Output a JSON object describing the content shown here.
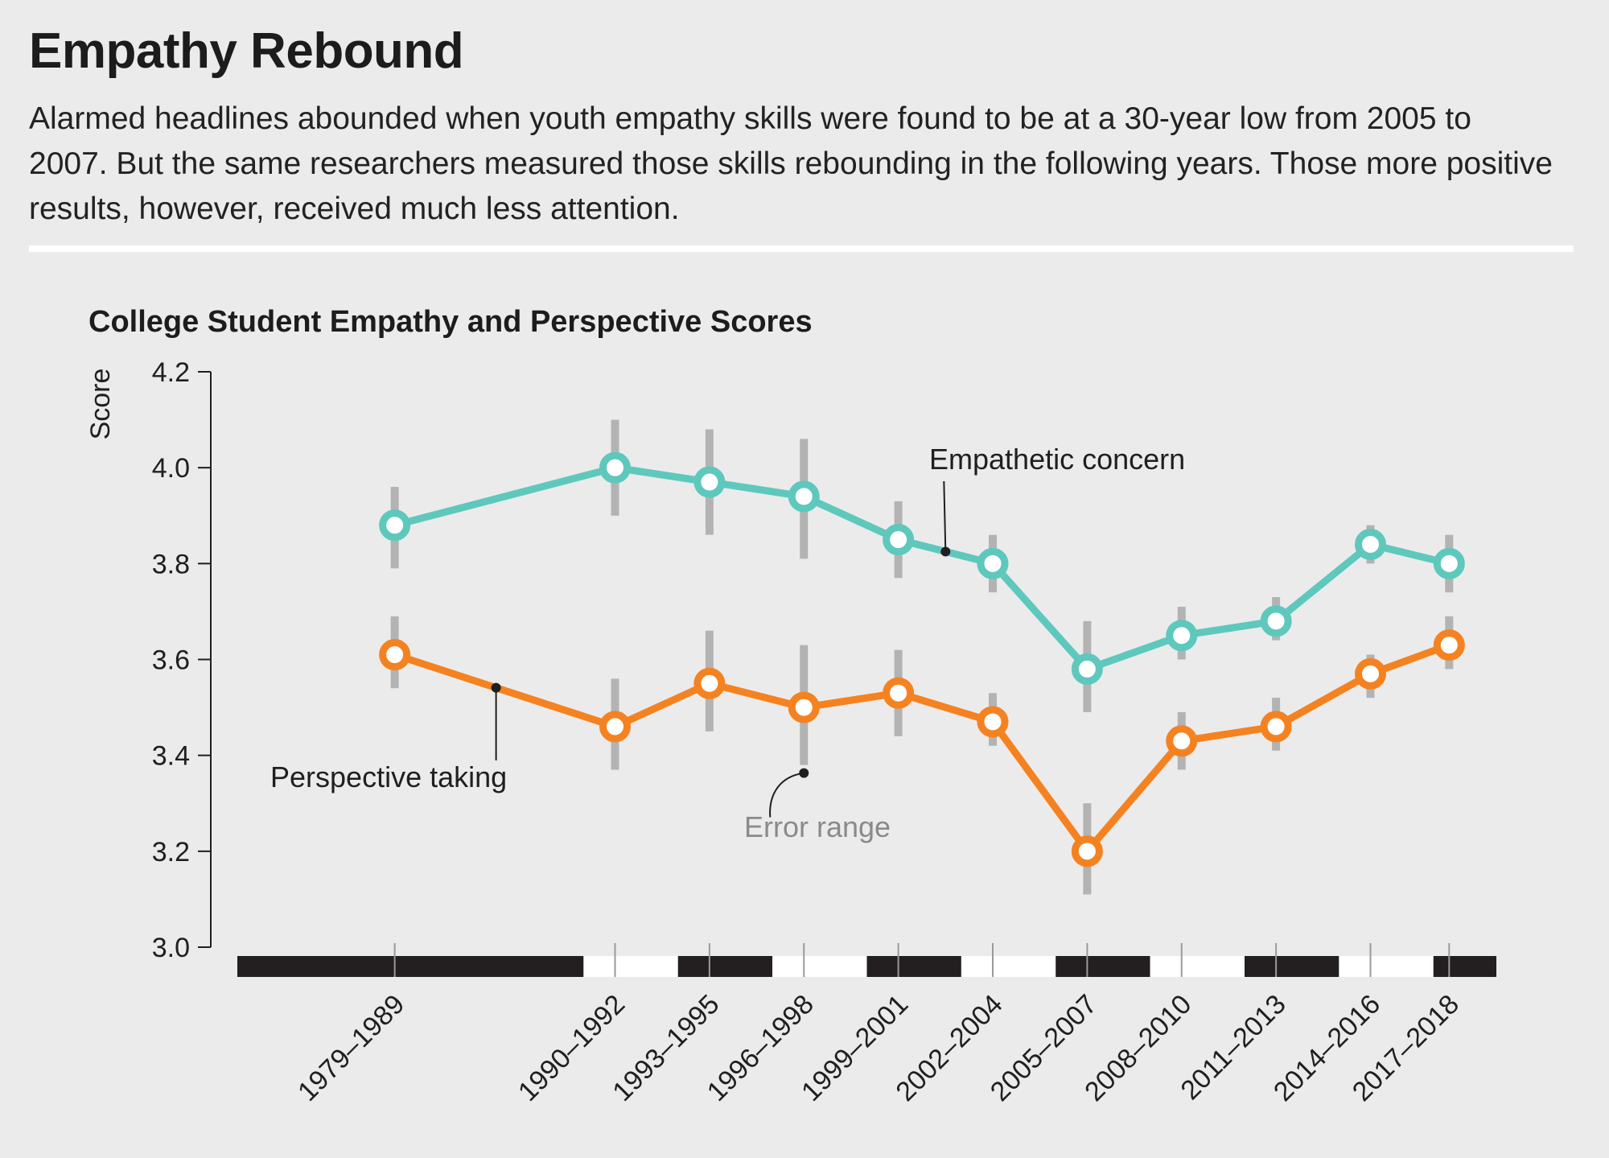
{
  "header": {
    "title": "Empathy Rebound",
    "description": "Alarmed headlines abounded when youth empathy skills were found to be at a 30-year low from 2005 to 2007. But the same researchers measured those skills rebounding in the following years. Those more positive results, however, received much less attention."
  },
  "chart_data": {
    "type": "line",
    "title": "College Student Empathy and Perspective Scores",
    "ylabel": "Score",
    "xlabel": "",
    "ylim": [
      3.0,
      4.2
    ],
    "yticks": [
      "3.0",
      "3.2",
      "3.4",
      "3.6",
      "3.8",
      "4.0",
      "4.2"
    ],
    "grid": false,
    "categories": [
      "1979–1989",
      "1990–1992",
      "1993–1995",
      "1996–1998",
      "1999–2001",
      "2002–2004",
      "2005–2007",
      "2008–2010",
      "2011–2013",
      "2014–2016",
      "2017–2018"
    ],
    "x_midyears": [
      1984,
      1991,
      1994,
      1997,
      2000,
      2003,
      2006,
      2009,
      2012,
      2015,
      2017.5
    ],
    "series": [
      {
        "name": "Empathetic concern",
        "color": "#5ec8bd",
        "values": [
          3.88,
          4.0,
          3.97,
          3.94,
          3.85,
          3.8,
          3.58,
          3.65,
          3.68,
          3.84,
          3.8
        ],
        "error_low": [
          3.79,
          3.9,
          3.86,
          3.81,
          3.77,
          3.74,
          3.49,
          3.6,
          3.64,
          3.8,
          3.74
        ],
        "error_high": [
          3.96,
          4.1,
          4.08,
          4.06,
          3.93,
          3.86,
          3.68,
          3.71,
          3.73,
          3.88,
          3.86
        ]
      },
      {
        "name": "Perspective taking",
        "color": "#f58220",
        "values": [
          3.61,
          3.46,
          3.55,
          3.5,
          3.53,
          3.47,
          3.2,
          3.43,
          3.46,
          3.57,
          3.63
        ],
        "error_low": [
          3.54,
          3.37,
          3.45,
          3.38,
          3.44,
          3.42,
          3.11,
          3.37,
          3.41,
          3.52,
          3.58
        ],
        "error_high": [
          3.69,
          3.56,
          3.66,
          3.63,
          3.62,
          3.53,
          3.3,
          3.49,
          3.52,
          3.61,
          3.69
        ]
      }
    ],
    "annotations": {
      "empathetic_label": "Empathetic concern",
      "perspective_label": "Perspective taking",
      "error_label": "Error range"
    },
    "colors": {
      "error_bar": "#b3b3b3",
      "axis": "#1f1f1f",
      "timeline_dark": "#231f20",
      "timeline_light": "#ffffff"
    }
  }
}
